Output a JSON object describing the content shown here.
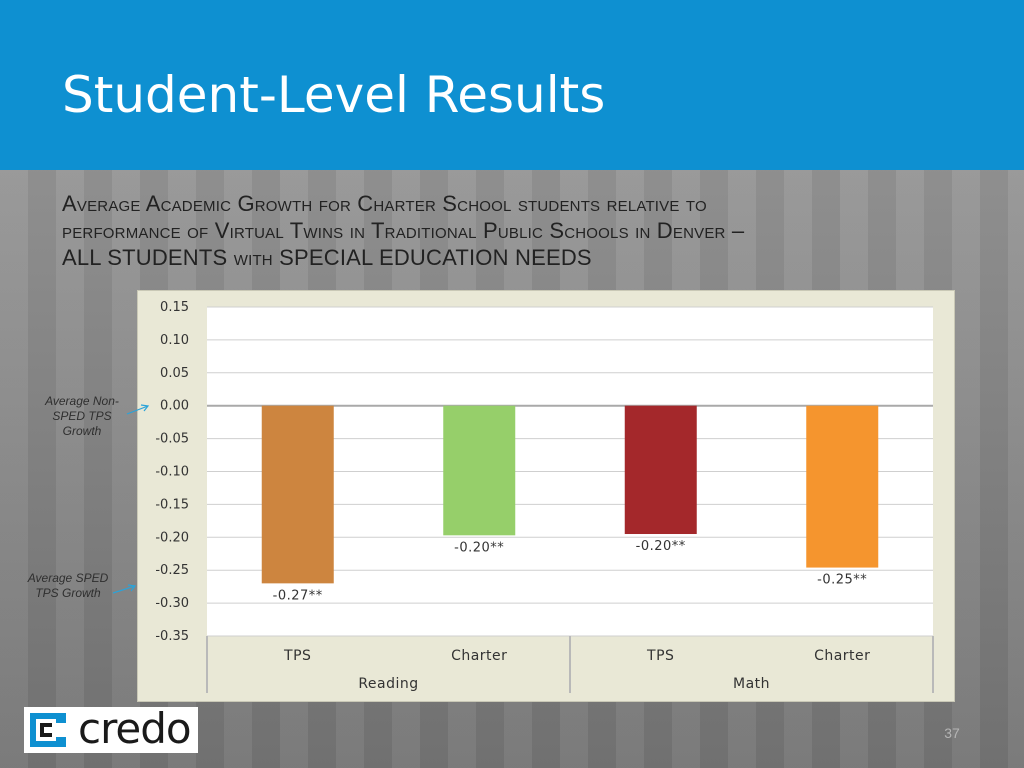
{
  "slide": {
    "title": "Student-Level Results",
    "subtitle_lines": [
      "Average Academic Growth for Charter School students relative to",
      "performance of Virtual Twins in Traditional Public Schools in Denver –",
      "ALL STUDENTS with SPECIAL EDUCATION NEEDS"
    ],
    "page_number": "37",
    "logo_text": "credo"
  },
  "annotations": {
    "non_sped": "Average Non-SPED TPS Growth",
    "sped": "Average SPED TPS Growth"
  },
  "colors": {
    "header": "#0e90d1",
    "panel": "#e9e8d6",
    "plot": "#ffffff",
    "arrow": "#2aa3d9"
  },
  "chart_data": {
    "type": "bar",
    "title": "",
    "xlabel": "",
    "ylabel": "",
    "ylim": [
      -0.35,
      0.15
    ],
    "yticks": [
      "0.15",
      "0.10",
      "0.05",
      "0.00",
      "-0.05",
      "-0.10",
      "-0.15",
      "-0.20",
      "-0.25",
      "-0.30",
      "-0.35"
    ],
    "ytick_values": [
      0.15,
      0.1,
      0.05,
      0.0,
      -0.05,
      -0.1,
      -0.15,
      -0.2,
      -0.25,
      -0.3,
      -0.35
    ],
    "grid": true,
    "legend": "none",
    "groups": [
      {
        "label": "Reading",
        "categories": [
          "TPS",
          "Charter"
        ]
      },
      {
        "label": "Math",
        "categories": [
          "TPS",
          "Charter"
        ]
      }
    ],
    "categories": [
      "TPS",
      "Charter",
      "TPS",
      "Charter"
    ],
    "values": [
      -0.27,
      -0.197,
      -0.195,
      -0.246
    ],
    "data_labels": [
      "-0.27**",
      "-0.20**",
      "-0.20**",
      "-0.25**"
    ],
    "bar_colors": [
      "#cd853f",
      "#96cf6a",
      "#a4282b",
      "#f5952e"
    ]
  }
}
